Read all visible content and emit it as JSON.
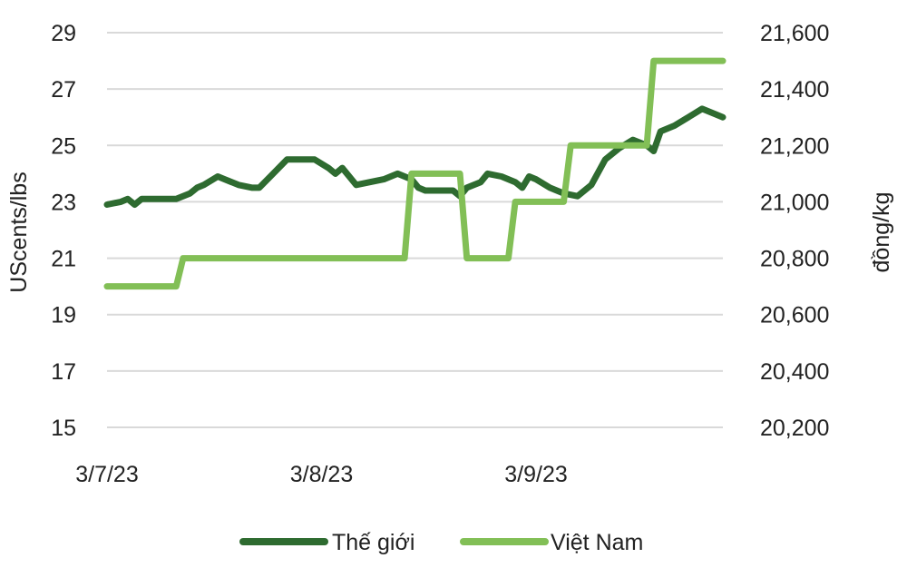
{
  "chart_data": {
    "type": "line",
    "y_left": {
      "label": "UScents/lbs",
      "range": [
        15,
        29
      ],
      "ticks": [
        "15",
        "17",
        "19",
        "21",
        "23",
        "25",
        "27",
        "29"
      ]
    },
    "y_right": {
      "label": "đồng/kg",
      "range": [
        20200,
        21600
      ],
      "ticks": [
        "20,200",
        "20,400",
        "20,600",
        "20,800",
        "21,000",
        "21,200",
        "21,400",
        "21,600"
      ]
    },
    "x": {
      "ticks": [
        "3/7/23",
        "3/8/23",
        "3/9/23"
      ],
      "range": [
        "2023-07-03",
        "2023-09-30"
      ]
    },
    "grid": true,
    "legend_position": "bottom",
    "series": [
      {
        "name": "Thế giới",
        "axis": "left",
        "color": "#2e6b30",
        "points": [
          [
            "2023-07-03",
            22.9
          ],
          [
            "2023-07-05",
            23.0
          ],
          [
            "2023-07-06",
            23.1
          ],
          [
            "2023-07-07",
            22.9
          ],
          [
            "2023-07-08",
            23.1
          ],
          [
            "2023-07-10",
            23.1
          ],
          [
            "2023-07-12",
            23.1
          ],
          [
            "2023-07-13",
            23.1
          ],
          [
            "2023-07-15",
            23.3
          ],
          [
            "2023-07-16",
            23.5
          ],
          [
            "2023-07-17",
            23.6
          ],
          [
            "2023-07-19",
            23.9
          ],
          [
            "2023-07-20",
            23.8
          ],
          [
            "2023-07-22",
            23.6
          ],
          [
            "2023-07-24",
            23.5
          ],
          [
            "2023-07-25",
            23.5
          ],
          [
            "2023-07-27",
            24.0
          ],
          [
            "2023-07-29",
            24.5
          ],
          [
            "2023-07-31",
            24.5
          ],
          [
            "2023-08-02",
            24.5
          ],
          [
            "2023-08-04",
            24.2
          ],
          [
            "2023-08-05",
            24.0
          ],
          [
            "2023-08-06",
            24.2
          ],
          [
            "2023-08-08",
            23.6
          ],
          [
            "2023-08-10",
            23.7
          ],
          [
            "2023-08-12",
            23.8
          ],
          [
            "2023-08-14",
            24.0
          ],
          [
            "2023-08-16",
            23.8
          ],
          [
            "2023-08-17",
            23.5
          ],
          [
            "2023-08-18",
            23.4
          ],
          [
            "2023-08-20",
            23.4
          ],
          [
            "2023-08-22",
            23.4
          ],
          [
            "2023-08-23",
            23.2
          ],
          [
            "2023-08-24",
            23.5
          ],
          [
            "2023-08-26",
            23.7
          ],
          [
            "2023-08-27",
            24.0
          ],
          [
            "2023-08-29",
            23.9
          ],
          [
            "2023-08-31",
            23.7
          ],
          [
            "2023-09-01",
            23.5
          ],
          [
            "2023-09-02",
            23.9
          ],
          [
            "2023-09-03",
            23.8
          ],
          [
            "2023-09-05",
            23.5
          ],
          [
            "2023-09-07",
            23.3
          ],
          [
            "2023-09-09",
            23.2
          ],
          [
            "2023-09-11",
            23.6
          ],
          [
            "2023-09-13",
            24.5
          ],
          [
            "2023-09-15",
            24.9
          ],
          [
            "2023-09-17",
            25.2
          ],
          [
            "2023-09-19",
            25.0
          ],
          [
            "2023-09-20",
            24.8
          ],
          [
            "2023-09-21",
            25.5
          ],
          [
            "2023-09-23",
            25.7
          ],
          [
            "2023-09-25",
            26.0
          ],
          [
            "2023-09-27",
            26.3
          ],
          [
            "2023-09-29",
            26.1
          ],
          [
            "2023-09-30",
            26.0
          ]
        ]
      },
      {
        "name": "Việt Nam",
        "axis": "right",
        "color": "#82bf56",
        "points": [
          [
            "2023-07-03",
            20700
          ],
          [
            "2023-07-12",
            20700
          ],
          [
            "2023-07-13",
            20700
          ],
          [
            "2023-07-14",
            20800
          ],
          [
            "2023-08-15",
            20800
          ],
          [
            "2023-08-16",
            21100
          ],
          [
            "2023-08-23",
            21100
          ],
          [
            "2023-08-24",
            20800
          ],
          [
            "2023-08-30",
            20800
          ],
          [
            "2023-08-31",
            21000
          ],
          [
            "2023-09-07",
            21000
          ],
          [
            "2023-09-08",
            21200
          ],
          [
            "2023-09-19",
            21200
          ],
          [
            "2023-09-20",
            21500
          ],
          [
            "2023-09-30",
            21500
          ]
        ]
      }
    ]
  }
}
